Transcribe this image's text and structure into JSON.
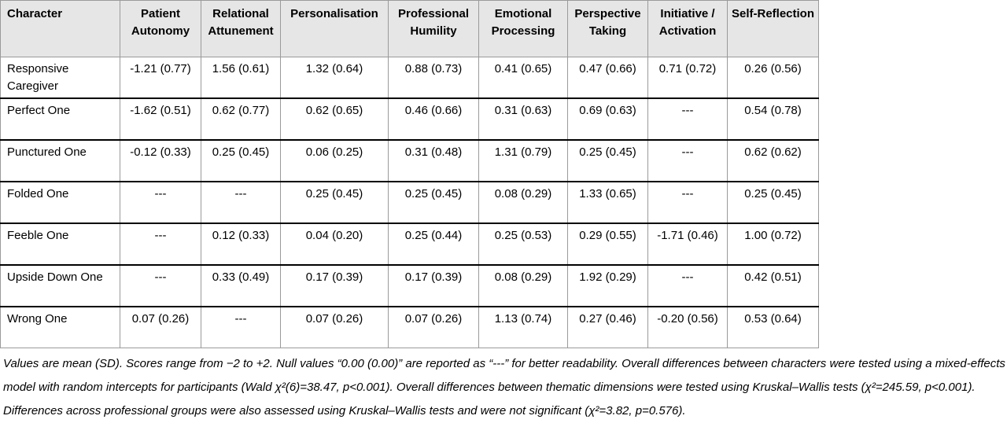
{
  "table": {
    "headers": [
      "Character",
      "Patient Autonomy",
      "Relational Attunement",
      "Personalisation",
      "Professional Humility",
      "Emotional Processing",
      "Perspective Taking",
      "Initiative / Activation",
      "Self-Reflection"
    ],
    "rows": [
      [
        "Responsive Caregiver",
        "-1.21 (0.77)",
        "1.56 (0.61)",
        "1.32 (0.64)",
        "0.88 (0.73)",
        "0.41 (0.65)",
        "0.47 (0.66)",
        "0.71 (0.72)",
        "0.26 (0.56)"
      ],
      [
        "Perfect One",
        "-1.62 (0.51)",
        "0.62 (0.77)",
        "0.62 (0.65)",
        "0.46 (0.66)",
        "0.31 (0.63)",
        "0.69 (0.63)",
        "---",
        "0.54 (0.78)"
      ],
      [
        "Punctured One",
        "-0.12 (0.33)",
        "0.25 (0.45)",
        "0.06 (0.25)",
        "0.31 (0.48)",
        "1.31 (0.79)",
        "0.25 (0.45)",
        "---",
        "0.62 (0.62)"
      ],
      [
        "Folded One",
        "---",
        "---",
        "0.25 (0.45)",
        "0.25 (0.45)",
        "0.08 (0.29)",
        "1.33 (0.65)",
        "---",
        "0.25 (0.45)"
      ],
      [
        "Feeble One",
        "---",
        "0.12 (0.33)",
        "0.04 (0.20)",
        "0.25 (0.44)",
        "0.25 (0.53)",
        "0.29 (0.55)",
        "-1.71 (0.46)",
        "1.00 (0.72)"
      ],
      [
        "Upside Down One",
        "---",
        "0.33 (0.49)",
        "0.17 (0.39)",
        "0.17 (0.39)",
        "0.08 (0.29)",
        "1.92 (0.29)",
        "---",
        "0.42 (0.51)"
      ],
      [
        "Wrong One",
        "0.07 (0.26)",
        "---",
        "0.07 (0.26)",
        "0.07 (0.26)",
        "1.13 (0.74)",
        "0.27 (0.46)",
        "-0.20 (0.56)",
        "0.53 (0.64)"
      ]
    ]
  },
  "note": "Values are mean (SD). Scores range from −2 to +2. Null values “0.00 (0.00)” are reported as “---” for better readability. Overall differences between characters were tested using a mixed-effects model with random intercepts for participants (Wald χ²(6)=38.47, p<0.001). Overall differences between thematic dimensions were tested using Kruskal–Wallis tests (χ²=245.59, p<0.001). Differences across professional groups were also assessed using Kruskal–Wallis tests and were not significant (χ²=3.82, p=0.576)."
}
